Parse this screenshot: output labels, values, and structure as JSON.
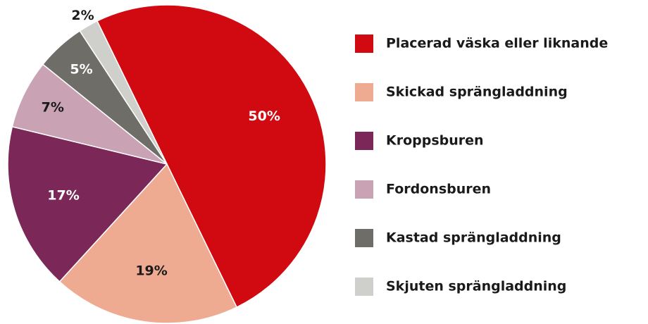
{
  "chart_data": {
    "type": "pie",
    "categories": [
      "Placerad väska eller liknande",
      "Skickad sprängladdning",
      "Kroppsburen",
      "Fordonsburen",
      "Kastad sprängladdning",
      "Skjuten sprängladdning"
    ],
    "values": [
      50,
      19,
      17,
      7,
      5,
      2
    ],
    "value_labels": [
      "50%",
      "19%",
      "17%",
      "7%",
      "5%",
      "2%"
    ],
    "colors": [
      "#d10a11",
      "#eeab91",
      "#7b2757",
      "#c9a3b3",
      "#6e6d68",
      "#cfcfcb"
    ],
    "label_colors": [
      "#ffffff",
      "#1a1a1a",
      "#ffffff",
      "#1a1a1a",
      "#ffffff",
      "#1a1a1a"
    ],
    "legend": "right"
  }
}
